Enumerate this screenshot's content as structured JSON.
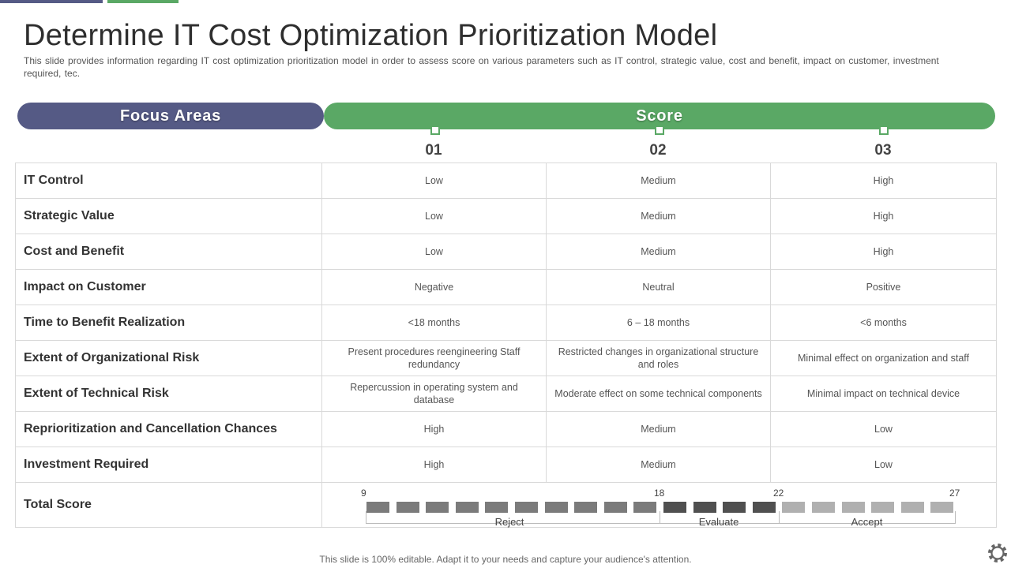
{
  "title": "Determine IT Cost Optimization Prioritization Model",
  "subtitle": "This slide provides information regarding IT cost optimization prioritization model in order to assess score on various parameters such as IT control, strategic value, cost and benefit, impact on customer, investment required, tec.",
  "headers": {
    "focus": "Focus Areas",
    "score": "Score"
  },
  "columns": [
    "01",
    "02",
    "03"
  ],
  "rows": [
    {
      "label": "IT Control",
      "values": [
        "Low",
        "Medium",
        "High"
      ]
    },
    {
      "label": "Strategic Value",
      "values": [
        "Low",
        "Medium",
        "High"
      ]
    },
    {
      "label": "Cost and Benefit",
      "values": [
        "Low",
        "Medium",
        "High"
      ]
    },
    {
      "label": "Impact on Customer",
      "values": [
        "Negative",
        "Neutral",
        "Positive"
      ]
    },
    {
      "label": "Time to Benefit Realization",
      "values": [
        "<18 months",
        "6 – 18 months",
        "<6 months"
      ]
    },
    {
      "label": "Extent of Organizational Risk",
      "values": [
        "Present procedures reengineering Staff redundancy",
        "Restricted changes in organizational structure and roles",
        "Minimal effect on organization and staff"
      ]
    },
    {
      "label": "Extent of Technical Risk",
      "values": [
        "Repercussion in operating system and database",
        "Moderate effect on some technical components",
        "Minimal impact on technical device"
      ]
    },
    {
      "label": "Reprioritization and Cancellation Chances",
      "values": [
        "High",
        "Medium",
        "Low"
      ]
    },
    {
      "label": "Investment Required",
      "values": [
        "High",
        "Medium",
        "Low"
      ]
    }
  ],
  "total": {
    "label": "Total Score",
    "ticks": [
      "9",
      "18",
      "22",
      "27"
    ],
    "segments": [
      {
        "label": "Reject",
        "blocks": 10,
        "color": "#7b7b7b"
      },
      {
        "label": "Evaluate",
        "blocks": 4,
        "color": "#505050"
      },
      {
        "label": "Accept",
        "blocks": 6,
        "color": "#b0b0b0"
      }
    ]
  },
  "footer": "This slide is 100% editable. Adapt it to your needs and capture your audience's attention.",
  "colors": {
    "focus": "#555a85",
    "score": "#5aa865"
  }
}
